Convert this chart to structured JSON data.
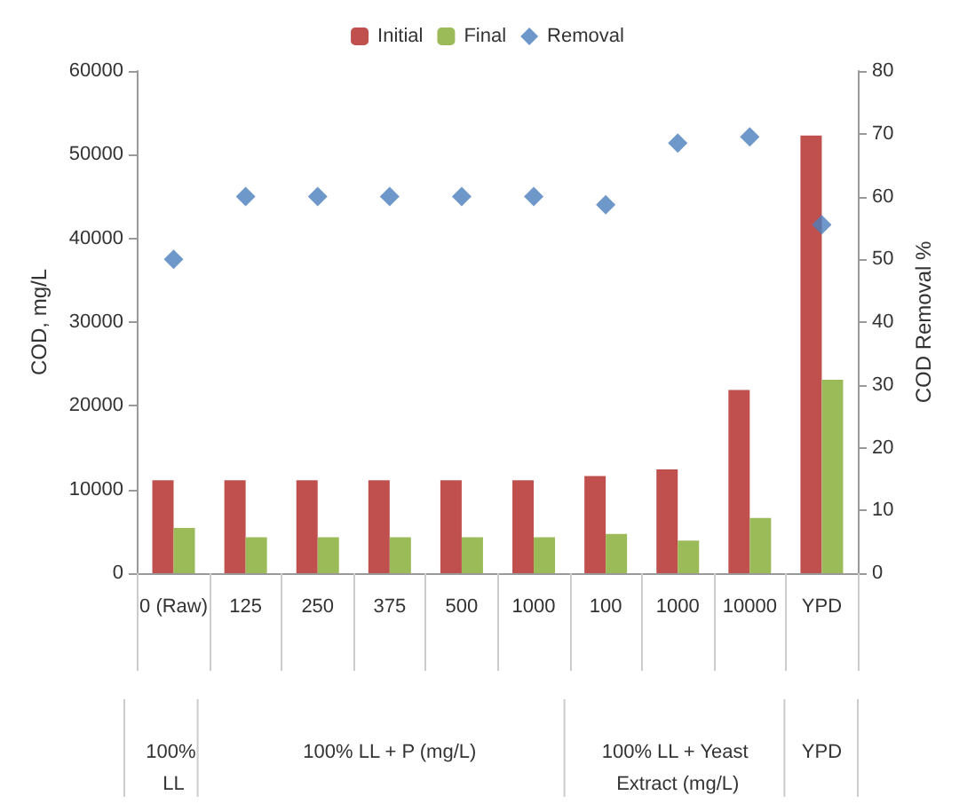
{
  "chart_data": {
    "type": "bar",
    "ylabel": "COD, mg/L",
    "y2label": "COD Removal %",
    "categories": [
      "0 (Raw)",
      "125",
      "250",
      "375",
      "500",
      "1000",
      "100",
      "1000",
      "10000",
      "YPD"
    ],
    "series": [
      {
        "name": "Initial",
        "color": "#c0504d",
        "values": [
          11100,
          11100,
          11100,
          11100,
          11100,
          11100,
          11600,
          12400,
          21900,
          52300
        ]
      },
      {
        "name": "Final",
        "color": "#9bbb59",
        "values": [
          5400,
          4300,
          4300,
          4300,
          4300,
          4300,
          4700,
          3900,
          6600,
          23100
        ]
      },
      {
        "name": "Removal",
        "type": "scatter",
        "axis": "y2",
        "marker": "diamond",
        "color": "#4a7ebb",
        "values": [
          50,
          60,
          60,
          60,
          60,
          60,
          58.7,
          68.5,
          69.5,
          55.5
        ]
      }
    ],
    "ylim": [
      0,
      60000
    ],
    "yticks": [
      0,
      10000,
      20000,
      30000,
      40000,
      50000,
      60000
    ],
    "y2lim": [
      0,
      80
    ],
    "y2ticks": [
      0,
      10,
      20,
      30,
      40,
      50,
      60,
      70,
      80
    ],
    "annotations": [
      "100% LL",
      "100% LL + P (mg/L)",
      "100% LL + Yeast Extract (mg/L)",
      "YPD"
    ],
    "legend": "top",
    "grid": false
  }
}
